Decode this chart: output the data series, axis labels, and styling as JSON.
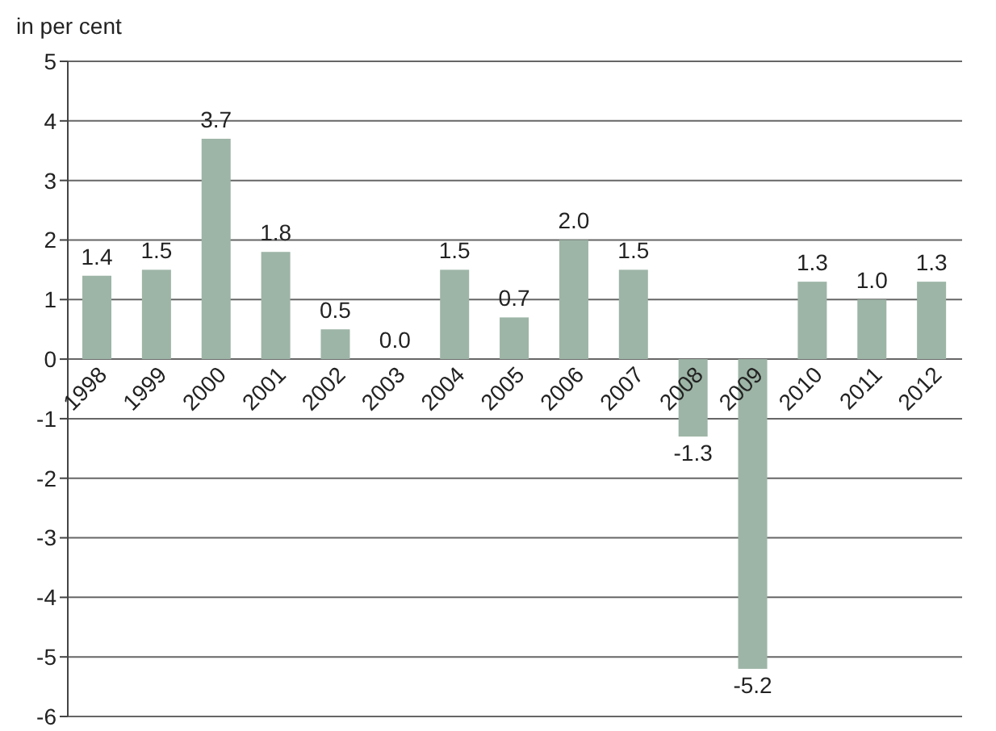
{
  "chart_data": {
    "type": "bar",
    "ylabel": "in per cent",
    "categories": [
      "1998",
      "1999",
      "2000",
      "2001",
      "2002",
      "2003",
      "2004",
      "2005",
      "2006",
      "2007",
      "2008",
      "2009",
      "2010",
      "2011",
      "2012"
    ],
    "values": [
      1.4,
      1.5,
      3.7,
      1.8,
      0.5,
      0.0,
      1.5,
      0.7,
      2.0,
      1.5,
      -1.3,
      -5.2,
      1.3,
      1.0,
      1.3
    ],
    "value_labels": [
      "1.4",
      "1.5",
      "3.7",
      "1.8",
      "0.5",
      "0.0",
      "1.5",
      "0.7",
      "2.0",
      "1.5",
      "-1.3",
      "-5.2",
      "1.3",
      "1.0",
      "1.3"
    ],
    "color": "#9db5a6",
    "ylim": [
      -6,
      5
    ],
    "yticks": [
      -6,
      -5,
      -4,
      -3,
      -2,
      -1,
      0,
      1,
      2,
      3,
      4,
      5
    ],
    "grid": "y"
  }
}
